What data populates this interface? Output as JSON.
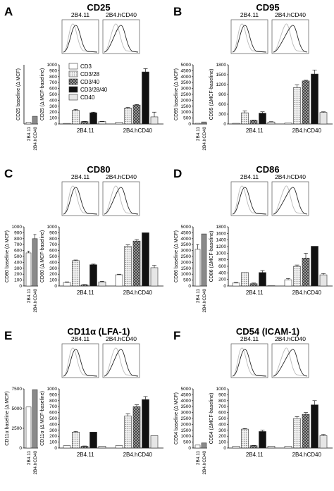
{
  "legend": [
    {
      "label": "CD3",
      "pattern": "white"
    },
    {
      "label": "CD3/28",
      "pattern": "dots"
    },
    {
      "label": "CD3/40",
      "pattern": "checker"
    },
    {
      "label": "CD3/28/40",
      "pattern": "black"
    },
    {
      "label": "CD40",
      "pattern": "lightgray"
    }
  ],
  "colors": {
    "bar_outline": "#333333",
    "black": "#111111",
    "gray_bar": "#8a8a8a",
    "light_bar": "#e6e6e6",
    "white_bar": "#ffffff"
  },
  "chart_data": [
    {
      "letter": "A",
      "title": "CD25",
      "type": "bar",
      "histo_labels": [
        "2B4.11",
        "2B4.hCD40"
      ],
      "baseline": {
        "ylabel": "CD25 baseline (Δ MCF)",
        "yticks": [],
        "ylim": [
          0,
          1000
        ],
        "categories": [
          "2B4.11",
          "2B4.hCD40"
        ],
        "values": [
          30,
          130
        ],
        "errors": [
          0,
          0
        ],
        "colors": [
          "white",
          "gray"
        ]
      },
      "main": {
        "ylabel": "CD25 (Δ MCF-baseline)",
        "yticks": [
          "0",
          "100",
          "200",
          "300",
          "400",
          "500",
          "600",
          "700",
          "800",
          "900",
          "1000"
        ],
        "ylim": [
          0,
          1000
        ],
        "groups": [
          "2B4.11",
          "2B4.hCD40"
        ],
        "series": [
          {
            "name": "CD3",
            "values": [
              10,
              30
            ],
            "errors": [
              0,
              0
            ]
          },
          {
            "name": "CD3/28",
            "values": [
              230,
              270
            ],
            "errors": [
              15,
              10
            ]
          },
          {
            "name": "CD3/40",
            "values": [
              40,
              320
            ],
            "errors": [
              5,
              10
            ]
          },
          {
            "name": "CD3/28/40",
            "values": [
              190,
              880
            ],
            "errors": [
              10,
              55
            ]
          },
          {
            "name": "CD40",
            "values": [
              40,
              120
            ],
            "errors": [
              5,
              80
            ]
          }
        ]
      }
    },
    {
      "letter": "B",
      "title": "CD95",
      "type": "bar",
      "histo_labels": [
        "2B4.11",
        "2B4.hCD40"
      ],
      "baseline": {
        "ylabel": "CD95 baseline (Δ MCF)",
        "yticks": [
          "0",
          "500",
          "1000",
          "1500",
          "2000",
          "2500",
          "3000",
          "3500",
          "4000",
          "4500",
          "5000"
        ],
        "ylim": [
          0,
          5000
        ],
        "categories": [
          "2B4.11",
          "2B4.hCD40"
        ],
        "values": [
          60,
          170
        ],
        "errors": [
          0,
          0
        ],
        "colors": [
          "white",
          "gray"
        ]
      },
      "main": {
        "ylabel": "CD95 (ΔMCF-baseline)",
        "yticks": [
          "0",
          "300",
          "600",
          "900",
          "1200",
          "1500",
          "1800"
        ],
        "ylim": [
          0,
          1800
        ],
        "groups": [
          "2B4.11",
          "2B4.hCD40"
        ],
        "series": [
          {
            "name": "CD3",
            "values": [
              20,
              30
            ],
            "errors": [
              0,
              0
            ]
          },
          {
            "name": "CD3/28",
            "values": [
              340,
              1110
            ],
            "errors": [
              60,
              80
            ]
          },
          {
            "name": "CD3/40",
            "values": [
              110,
              1310
            ],
            "errors": [
              10,
              20
            ]
          },
          {
            "name": "CD3/28/40",
            "values": [
              330,
              1520
            ],
            "errors": [
              40,
              120
            ]
          },
          {
            "name": "CD40",
            "values": [
              60,
              350
            ],
            "errors": [
              10,
              20
            ]
          }
        ]
      }
    },
    {
      "letter": "C",
      "title": "CD80",
      "type": "bar",
      "histo_labels": [
        "2B4.11",
        "2B4.hCD40"
      ],
      "baseline": {
        "ylabel": "CD80 baseline (Δ MCF)",
        "yticks": [
          "0",
          "100",
          "200",
          "300",
          "400",
          "500",
          "600",
          "700",
          "800",
          "900",
          "1000"
        ],
        "ylim": [
          0,
          1000
        ],
        "categories": [
          "2B4.11",
          "2B4.hCD40"
        ],
        "values": [
          560,
          800
        ],
        "errors": [
          30,
          70
        ],
        "colors": [
          "white",
          "gray"
        ]
      },
      "main": {
        "ylabel": "CD80 (Δ MCF-baseline)",
        "yticks": [
          "0",
          "100",
          "200",
          "300",
          "400",
          "500",
          "600",
          "700",
          "800",
          "900",
          "1000"
        ],
        "ylim": [
          0,
          1000
        ],
        "groups": [
          "2B4.11",
          "2B4.hCD40"
        ],
        "series": [
          {
            "name": "CD3",
            "values": [
              60,
              190
            ],
            "errors": [
              10,
              10
            ]
          },
          {
            "name": "CD3/28",
            "values": [
              430,
              670
            ],
            "errors": [
              10,
              25
            ]
          },
          {
            "name": "CD3/40",
            "values": [
              20,
              760
            ],
            "errors": [
              5,
              25
            ]
          },
          {
            "name": "CD3/28/40",
            "values": [
              360,
              900
            ],
            "errors": [
              10,
              0
            ]
          },
          {
            "name": "CD40",
            "values": [
              70,
              310
            ],
            "errors": [
              10,
              40
            ]
          }
        ]
      }
    },
    {
      "letter": "D",
      "title": "CD86",
      "type": "bar",
      "histo_labels": [
        "2B4.11",
        "2B4.hCD40"
      ],
      "baseline": {
        "ylabel": "CD86 baseline (Δ MCF)",
        "yticks": [
          "0",
          "500",
          "1000",
          "1500",
          "2000",
          "2500",
          "3000",
          "3500",
          "4000",
          "4500",
          "5000"
        ],
        "ylim": [
          0,
          5000
        ],
        "categories": [
          "2B4.11",
          "2B4.hCD40"
        ],
        "values": [
          3100,
          4400
        ],
        "errors": [
          400,
          0
        ],
        "colors": [
          "white",
          "gray"
        ]
      },
      "main": {
        "ylabel": "CD86 (ΔMCF-baseline)",
        "yticks": [
          "0",
          "200",
          "400",
          "600",
          "800",
          "1000",
          "1200",
          "1400",
          "1600",
          "1800"
        ],
        "ylim": [
          0,
          1800
        ],
        "groups": [
          "2B4.11",
          "2B4.hCD40"
        ],
        "series": [
          {
            "name": "CD3",
            "values": [
              90,
              190
            ],
            "errors": [
              20,
              40
            ]
          },
          {
            "name": "CD3/28",
            "values": [
              410,
              600
            ],
            "errors": [
              0,
              40
            ]
          },
          {
            "name": "CD3/40",
            "values": [
              70,
              850
            ],
            "errors": [
              20,
              150
            ]
          },
          {
            "name": "CD3/28/40",
            "values": [
              410,
              1210
            ],
            "errors": [
              60,
              0
            ]
          },
          {
            "name": "CD40",
            "values": [
              10,
              340
            ],
            "errors": [
              0,
              40
            ]
          }
        ]
      }
    },
    {
      "letter": "E",
      "title": "CD11α (LFA-1)",
      "type": "bar",
      "histo_labels": [
        "2B4.11",
        "2B4.hCD40"
      ],
      "baseline": {
        "ylabel": "CD11α baseline (Δ MCF)",
        "yticks": [
          "0",
          "2500",
          "5000",
          "7500"
        ],
        "ylim": [
          0,
          7500
        ],
        "categories": [
          "2B4.11",
          "2B4.hCD40"
        ],
        "values": [
          5200,
          7400
        ],
        "errors": [
          0,
          0
        ],
        "colors": [
          "white",
          "gray"
        ]
      },
      "main": {
        "ylabel": "CD11α (Δ MCF-baseline)",
        "yticks": [
          "0",
          "100",
          "200",
          "300",
          "400",
          "500",
          "600",
          "700",
          "800",
          "900",
          "1000"
        ],
        "ylim": [
          0,
          1000
        ],
        "groups": [
          "2B4.11",
          "2B4.hCD40"
        ],
        "series": [
          {
            "name": "CD3",
            "values": [
              40,
              40
            ],
            "errors": [
              0,
              0
            ]
          },
          {
            "name": "CD3/28",
            "values": [
              270,
              540
            ],
            "errors": [
              10,
              40
            ]
          },
          {
            "name": "CD3/40",
            "values": [
              30,
              700
            ],
            "errors": [
              5,
              30
            ]
          },
          {
            "name": "CD3/28/40",
            "values": [
              270,
              820
            ],
            "errors": [
              0,
              50
            ]
          },
          {
            "name": "CD40",
            "values": [
              30,
              210
            ],
            "errors": [
              0,
              0
            ]
          }
        ]
      }
    },
    {
      "letter": "F",
      "title": "CD54 (ICAM-1)",
      "type": "bar",
      "histo_labels": [
        "2B4.11",
        "2B4.hCD40"
      ],
      "baseline": {
        "ylabel": "CD54 baseline (Δ MCF)",
        "yticks": [
          "0",
          "500",
          "1000",
          "1500",
          "2000",
          "2500",
          "3000",
          "3500",
          "4000",
          "4500",
          "5000"
        ],
        "ylim": [
          0,
          5000
        ],
        "categories": [
          "2B4.11",
          "2B4.hCD40"
        ],
        "values": [
          250,
          430
        ],
        "errors": [
          0,
          0
        ],
        "colors": [
          "white",
          "gray"
        ]
      },
      "main": {
        "ylabel": "CD54 (ΔMCF-baseline)",
        "yticks": [
          "0",
          "100",
          "200",
          "300",
          "400",
          "500",
          "600",
          "700",
          "800",
          "900",
          "1000"
        ],
        "ylim": [
          0,
          1000
        ],
        "groups": [
          "2B4.11",
          "2B4.hCD40"
        ],
        "series": [
          {
            "name": "CD3",
            "values": [
              30,
              30
            ],
            "errors": [
              0,
              0
            ]
          },
          {
            "name": "CD3/28",
            "values": [
              320,
              500
            ],
            "errors": [
              10,
              30
            ]
          },
          {
            "name": "CD3/40",
            "values": [
              40,
              570
            ],
            "errors": [
              5,
              30
            ]
          },
          {
            "name": "CD3/28/40",
            "values": [
              280,
              730
            ],
            "errors": [
              20,
              70
            ]
          },
          {
            "name": "CD40",
            "values": [
              30,
              210
            ],
            "errors": [
              0,
              20
            ]
          }
        ]
      }
    }
  ]
}
